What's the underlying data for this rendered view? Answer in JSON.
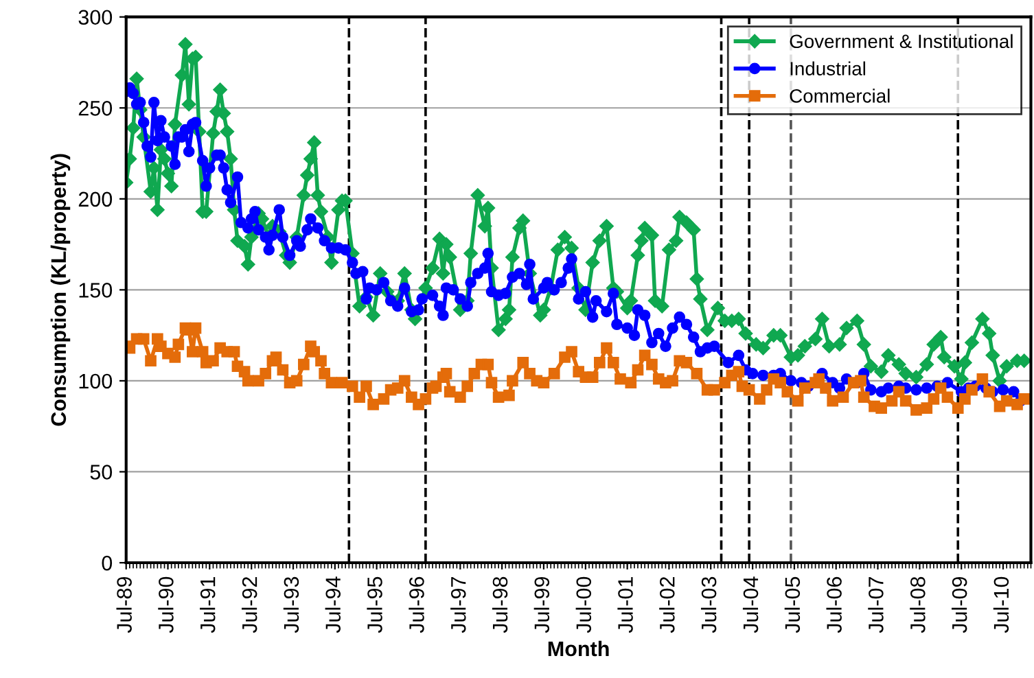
{
  "chart_data": {
    "type": "line",
    "xlabel": "Month",
    "ylabel": "Consumption (KL/property)",
    "xlim": [
      "1989-07",
      "2011-03"
    ],
    "ylim": [
      0,
      300
    ],
    "yticks": [
      0,
      50,
      100,
      150,
      200,
      250,
      300
    ],
    "xticks": [
      {
        "value": "1989-07",
        "label": "Jul-89"
      },
      {
        "value": "1990-07",
        "label": "Jul-90"
      },
      {
        "value": "1991-07",
        "label": "Jul-91"
      },
      {
        "value": "1992-07",
        "label": "Jul-92"
      },
      {
        "value": "1993-07",
        "label": "Jul-93"
      },
      {
        "value": "1994-07",
        "label": "Jul-94"
      },
      {
        "value": "1995-07",
        "label": "Jul-95"
      },
      {
        "value": "1996-07",
        "label": "Jul-96"
      },
      {
        "value": "1997-07",
        "label": "Jul-97"
      },
      {
        "value": "1998-07",
        "label": "Jul-98"
      },
      {
        "value": "1999-07",
        "label": "Jul-99"
      },
      {
        "value": "2000-07",
        "label": "Jul-00"
      },
      {
        "value": "2001-07",
        "label": "Jul-01"
      },
      {
        "value": "2002-07",
        "label": "Jul-02"
      },
      {
        "value": "2003-07",
        "label": "Jul-03"
      },
      {
        "value": "2004-07",
        "label": "Jul-04"
      },
      {
        "value": "2005-07",
        "label": "Jul-05"
      },
      {
        "value": "2006-07",
        "label": "Jul-06"
      },
      {
        "value": "2007-07",
        "label": "Jul-07"
      },
      {
        "value": "2008-07",
        "label": "Jul-08"
      },
      {
        "value": "2009-07",
        "label": "Jul-09"
      },
      {
        "value": "2010-07",
        "label": "Jul-10"
      }
    ],
    "grid": "y",
    "legend": "top right",
    "line_style": "solid",
    "ref_lines": [
      {
        "axis": "x",
        "value": "1994-11",
        "color": "#000000",
        "line_style": "dashed"
      },
      {
        "axis": "x",
        "value": "1996-09",
        "color": "#000000",
        "line_style": "dashed"
      },
      {
        "axis": "x",
        "value": "2003-10",
        "color": "#000000",
        "line_style": "dashed"
      },
      {
        "axis": "x",
        "value": "2004-06",
        "color": "#000000",
        "line_style": "dashed"
      },
      {
        "axis": "x",
        "value": "2005-06",
        "color": "#555555",
        "line_style": "dashed"
      },
      {
        "axis": "x",
        "value": "2009-06",
        "color": "#000000",
        "line_style": "dashed"
      }
    ],
    "series": [
      {
        "name": "Government & Institutional",
        "color": "#10a850",
        "marker": "diamond",
        "x": [
          "1989-07",
          "1989-08",
          "1989-09",
          "1989-10",
          "1989-11",
          "1989-12",
          "1990-02",
          "1990-03",
          "1990-04",
          "1990-05",
          "1990-06",
          "1990-07",
          "1990-08",
          "1990-09",
          "1990-11",
          "1990-12",
          "1991-01",
          "1991-02",
          "1991-03",
          "1991-04",
          "1991-05",
          "1991-06",
          "1991-08",
          "1991-09",
          "1991-10",
          "1991-11",
          "1991-12",
          "1992-01",
          "1992-02",
          "1992-03",
          "1992-05",
          "1992-06",
          "1992-07",
          "1992-09",
          "1992-10",
          "1992-12",
          "1993-01",
          "1993-03",
          "1993-05",
          "1993-06",
          "1993-08",
          "1993-10",
          "1993-11",
          "1993-12",
          "1994-01",
          "1994-02",
          "1994-03",
          "1994-05",
          "1994-06",
          "1994-08",
          "1994-09",
          "1994-10",
          "1994-12",
          "1995-02",
          "1995-04",
          "1995-06",
          "1995-08",
          "1995-10",
          "1996-01",
          "1996-03",
          "1996-05",
          "1996-06",
          "1996-09",
          "1996-11",
          "1997-01",
          "1997-02",
          "1997-03",
          "1997-04",
          "1997-07",
          "1997-09",
          "1997-10",
          "1997-12",
          "1998-02",
          "1998-03",
          "1998-04",
          "1998-06",
          "1998-08",
          "1998-09",
          "1998-10",
          "1998-12",
          "1999-01",
          "1999-03",
          "1999-06",
          "1999-07",
          "1999-09",
          "1999-11",
          "2000-01",
          "2000-03",
          "2000-05",
          "2000-07",
          "2000-09",
          "2000-11",
          "2001-01",
          "2001-03",
          "2001-04",
          "2001-07",
          "2001-08",
          "2001-10",
          "2001-11",
          "2001-12",
          "2002-02",
          "2002-03",
          "2002-05",
          "2002-07",
          "2002-09",
          "2002-10",
          "2002-12",
          "2003-02",
          "2003-03",
          "2003-04",
          "2003-06",
          "2003-09",
          "2003-11",
          "2004-01",
          "2004-03",
          "2004-05",
          "2004-08",
          "2004-10",
          "2005-01",
          "2005-03",
          "2005-06",
          "2005-08",
          "2005-10",
          "2006-01",
          "2006-03",
          "2006-05",
          "2006-08",
          "2006-10",
          "2007-01",
          "2007-03",
          "2007-05",
          "2007-08",
          "2007-10",
          "2008-01",
          "2008-03",
          "2008-06",
          "2008-09",
          "2008-11",
          "2009-01",
          "2009-02",
          "2009-05",
          "2009-07",
          "2009-08",
          "2009-10",
          "2010-01",
          "2010-03",
          "2010-04",
          "2010-06",
          "2010-08",
          "2010-11",
          "2011-01"
        ],
        "values": [
          209,
          222,
          239,
          266,
          249,
          234,
          204,
          217,
          194,
          227,
          222,
          214,
          207,
          241,
          268,
          285,
          252,
          277,
          278,
          237,
          193,
          193,
          236,
          248,
          260,
          247,
          237,
          222,
          194,
          177,
          174,
          164,
          179,
          192,
          189,
          179,
          185,
          182,
          169,
          165,
          179,
          202,
          213,
          222,
          231,
          202,
          193,
          179,
          165,
          194,
          199,
          199,
          170,
          141,
          146,
          136,
          159,
          149,
          144,
          159,
          139,
          134,
          151,
          162,
          178,
          159,
          175,
          168,
          139,
          144,
          170,
          202,
          185,
          195,
          162,
          128,
          134,
          139,
          168,
          184,
          188,
          159,
          136,
          139,
          151,
          172,
          179,
          173,
          151,
          139,
          165,
          177,
          185,
          151,
          149,
          140,
          144,
          169,
          177,
          184,
          180,
          144,
          141,
          172,
          177,
          190,
          187,
          183,
          156,
          145,
          128,
          140,
          133,
          133,
          134,
          126,
          120,
          118,
          125,
          125,
          113,
          114,
          119,
          123,
          134,
          119,
          120,
          129,
          133,
          120,
          108,
          105,
          114,
          109,
          104,
          102,
          109,
          120,
          124,
          113,
          108,
          101,
          110,
          121,
          134,
          126,
          114,
          100,
          108,
          111,
          111
        ]
      },
      {
        "name": "Industrial",
        "color": "#0000ff",
        "marker": "circle",
        "x": [
          "1989-07",
          "1989-08",
          "1989-09",
          "1989-10",
          "1989-11",
          "1989-12",
          "1990-01",
          "1990-02",
          "1990-03",
          "1990-04",
          "1990-05",
          "1990-06",
          "1990-08",
          "1990-09",
          "1990-10",
          "1990-11",
          "1990-12",
          "1991-01",
          "1991-02",
          "1991-03",
          "1991-05",
          "1991-06",
          "1991-07",
          "1991-09",
          "1991-10",
          "1991-11",
          "1991-12",
          "1992-01",
          "1992-03",
          "1992-04",
          "1992-06",
          "1992-07",
          "1992-08",
          "1992-09",
          "1992-11",
          "1992-12",
          "1993-01",
          "1993-03",
          "1993-04",
          "1993-06",
          "1993-08",
          "1993-09",
          "1993-11",
          "1993-12",
          "1994-02",
          "1994-04",
          "1994-06",
          "1994-08",
          "1994-10",
          "1994-12",
          "1995-01",
          "1995-03",
          "1995-04",
          "1995-05",
          "1995-07",
          "1995-09",
          "1995-11",
          "1996-01",
          "1996-03",
          "1996-05",
          "1996-07",
          "1996-08",
          "1996-11",
          "1997-01",
          "1997-02",
          "1997-03",
          "1997-05",
          "1997-07",
          "1997-09",
          "1997-10",
          "1997-12",
          "1998-02",
          "1998-03",
          "1998-04",
          "1998-06",
          "1998-08",
          "1998-10",
          "1998-12",
          "1999-02",
          "1999-03",
          "1999-04",
          "1999-07",
          "1999-08",
          "1999-10",
          "1999-12",
          "2000-02",
          "2000-03",
          "2000-05",
          "2000-07",
          "2000-09",
          "2000-10",
          "2001-01",
          "2001-03",
          "2001-04",
          "2001-07",
          "2001-09",
          "2001-10",
          "2001-12",
          "2002-02",
          "2002-04",
          "2002-06",
          "2002-08",
          "2002-10",
          "2002-12",
          "2003-02",
          "2003-04",
          "2003-06",
          "2003-08",
          "2003-12",
          "2004-03",
          "2004-05",
          "2004-07",
          "2004-10",
          "2005-01",
          "2005-03",
          "2005-06",
          "2005-09",
          "2005-11",
          "2006-03",
          "2006-06",
          "2006-08",
          "2006-10",
          "2007-01",
          "2007-03",
          "2007-05",
          "2007-08",
          "2007-10",
          "2008-01",
          "2008-03",
          "2008-06",
          "2008-09",
          "2008-12",
          "2009-03",
          "2009-07",
          "2009-09",
          "2009-11",
          "2010-02",
          "2010-04",
          "2010-07",
          "2010-10",
          "2010-12"
        ],
        "values": [
          259,
          261,
          258,
          252,
          253,
          242,
          229,
          223,
          253,
          232,
          243,
          234,
          229,
          219,
          234,
          234,
          238,
          226,
          241,
          242,
          221,
          207,
          217,
          224,
          224,
          217,
          205,
          198,
          212,
          187,
          184,
          189,
          193,
          183,
          179,
          172,
          180,
          194,
          179,
          169,
          177,
          174,
          183,
          189,
          184,
          177,
          173,
          173,
          172,
          165,
          159,
          160,
          145,
          151,
          150,
          154,
          144,
          141,
          151,
          138,
          139,
          145,
          147,
          141,
          136,
          151,
          150,
          145,
          141,
          154,
          159,
          162,
          170,
          149,
          147,
          148,
          157,
          159,
          153,
          164,
          145,
          151,
          154,
          150,
          154,
          162,
          167,
          145,
          149,
          135,
          144,
          138,
          148,
          131,
          129,
          125,
          139,
          136,
          121,
          126,
          119,
          129,
          135,
          131,
          124,
          116,
          118,
          119,
          110,
          114,
          106,
          104,
          103,
          103,
          104,
          100,
          99,
          97,
          104,
          99,
          96,
          101,
          99,
          104,
          95,
          94,
          96,
          97,
          96,
          95,
          96,
          97,
          99,
          94,
          96,
          97,
          96,
          94,
          95,
          94,
          89
        ]
      },
      {
        "name": "Commercial",
        "color": "#e46c0a",
        "marker": "square",
        "x": [
          "1989-07",
          "1989-08",
          "1989-10",
          "1989-12",
          "1990-02",
          "1990-04",
          "1990-05",
          "1990-07",
          "1990-09",
          "1990-10",
          "1990-12",
          "1991-01",
          "1991-02",
          "1991-03",
          "1991-05",
          "1991-06",
          "1991-08",
          "1991-10",
          "1991-12",
          "1992-02",
          "1992-03",
          "1992-05",
          "1992-06",
          "1992-09",
          "1992-11",
          "1993-01",
          "1993-02",
          "1993-04",
          "1993-06",
          "1993-08",
          "1993-10",
          "1993-12",
          "1994-01",
          "1994-03",
          "1994-04",
          "1994-06",
          "1994-09",
          "1994-12",
          "1995-02",
          "1995-04",
          "1995-06",
          "1995-09",
          "1995-11",
          "1996-01",
          "1996-03",
          "1996-05",
          "1996-07",
          "1996-09",
          "1996-11",
          "1996-12",
          "1997-02",
          "1997-03",
          "1997-04",
          "1997-07",
          "1997-09",
          "1997-11",
          "1998-01",
          "1998-03",
          "1998-04",
          "1998-06",
          "1998-09",
          "1998-10",
          "1999-01",
          "1999-03",
          "1999-05",
          "1999-07",
          "1999-10",
          "2000-01",
          "2000-03",
          "2000-05",
          "2000-07",
          "2000-09",
          "2000-11",
          "2001-01",
          "2001-03",
          "2001-05",
          "2001-08",
          "2001-10",
          "2001-12",
          "2002-02",
          "2002-04",
          "2002-06",
          "2002-08",
          "2002-10",
          "2002-12",
          "2003-03",
          "2003-06",
          "2003-08",
          "2003-11",
          "2004-01",
          "2004-03",
          "2004-04",
          "2004-06",
          "2004-09",
          "2004-11",
          "2005-01",
          "2005-03",
          "2005-05",
          "2005-08",
          "2005-10",
          "2006-01",
          "2006-02",
          "2006-04",
          "2006-06",
          "2006-09",
          "2006-12",
          "2007-02",
          "2007-03",
          "2007-06",
          "2007-08",
          "2007-11",
          "2008-01",
          "2008-03",
          "2008-06",
          "2008-09",
          "2008-11",
          "2009-01",
          "2009-03",
          "2009-06",
          "2009-08",
          "2009-10",
          "2010-01",
          "2010-03",
          "2010-06",
          "2010-08",
          "2010-11",
          "2011-01"
        ],
        "values": [
          119,
          118,
          123,
          123,
          111,
          123,
          119,
          115,
          113,
          120,
          129,
          128,
          116,
          129,
          116,
          110,
          111,
          118,
          116,
          116,
          108,
          105,
          100,
          100,
          104,
          111,
          113,
          106,
          99,
          100,
          109,
          119,
          116,
          111,
          104,
          99,
          99,
          97,
          91,
          97,
          87,
          90,
          95,
          96,
          100,
          91,
          87,
          90,
          96,
          97,
          102,
          104,
          94,
          91,
          97,
          104,
          109,
          109,
          99,
          91,
          92,
          100,
          110,
          104,
          100,
          99,
          104,
          113,
          116,
          105,
          102,
          102,
          110,
          118,
          110,
          101,
          99,
          106,
          114,
          109,
          101,
          99,
          100,
          111,
          110,
          104,
          95,
          95,
          99,
          103,
          105,
          97,
          95,
          90,
          95,
          101,
          99,
          94,
          89,
          96,
          99,
          101,
          96,
          89,
          91,
          99,
          100,
          91,
          86,
          85,
          89,
          94,
          89,
          84,
          85,
          90,
          96,
          91,
          85,
          90,
          95,
          101,
          94,
          86,
          89,
          87,
          90
        ]
      }
    ]
  }
}
